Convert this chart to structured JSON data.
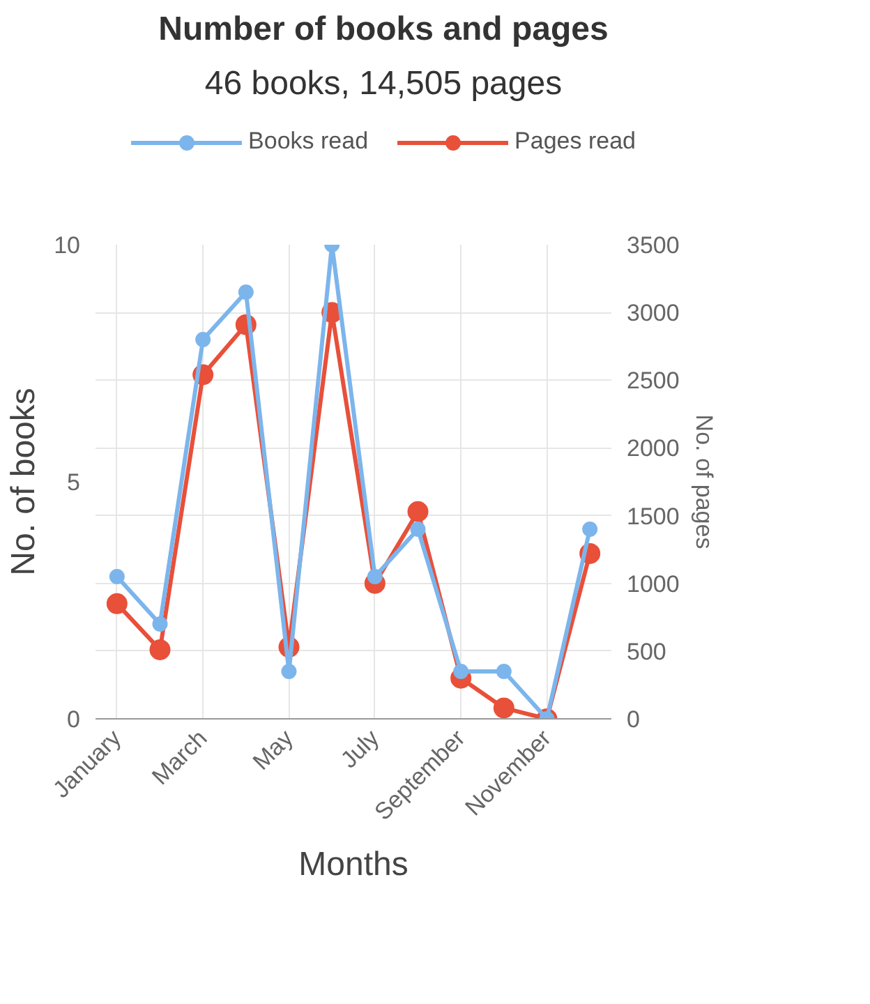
{
  "chart_data": {
    "type": "line",
    "title": "Number of books and pages",
    "subtitle": "46 books, 14,505 pages",
    "xlabel": "Months",
    "ylabel": "No. of books",
    "y2label": "No. of pages",
    "categories": [
      "January",
      null,
      "March",
      null,
      "May",
      null,
      "July",
      null,
      "September",
      null,
      "November",
      null
    ],
    "series": [
      {
        "name": "Books read",
        "color": "#7cb5ec",
        "values": [
          3,
          2,
          8,
          9,
          1,
          10,
          3,
          4,
          1,
          1,
          0,
          4
        ]
      },
      {
        "name": "Pages read",
        "color": "#e8503a",
        "axis": "y2",
        "values": [
          850,
          510,
          2540,
          2910,
          530,
          3000,
          1000,
          1530,
          300,
          80,
          0,
          1220
        ]
      }
    ],
    "ylim": [
      0,
      10
    ],
    "yticks": [
      0,
      5,
      10
    ],
    "y2lim": [
      0,
      3500
    ],
    "y2ticks": [
      0,
      500,
      1000,
      1500,
      2000,
      2500,
      3000,
      3500
    ],
    "grid": true,
    "legend": "top",
    "marker": "circle",
    "line_style": "solid"
  }
}
